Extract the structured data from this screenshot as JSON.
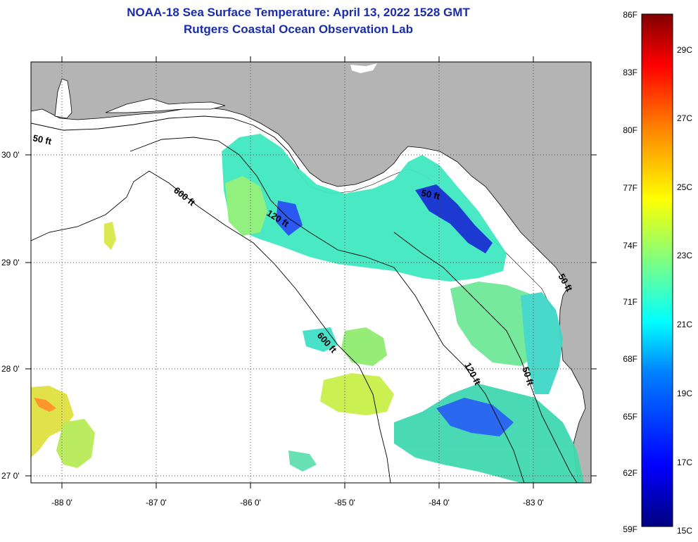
{
  "header": {
    "title": "NOAA-18 Sea Surface Temperature:  April 13, 2022 1528 GMT",
    "subtitle": "Rutgers Coastal Ocean Observation Lab"
  },
  "map": {
    "lat_labels": [
      "30 0'",
      "29 0'",
      "28 0'",
      "27 0'"
    ],
    "lon_labels": [
      "-88 0'",
      "-87 0'",
      "-86 0'",
      "-85 0'",
      "-84 0'",
      "-83 0'"
    ],
    "depth_labels": [
      "50 ft",
      "600 ft",
      "120 ft",
      "600 ft",
      "120 ft",
      "50 ft",
      "50 ft",
      "50 ft"
    ],
    "colors": {
      "land": "#b4b4b4",
      "cloud": "#ffffff",
      "coast": "#000000"
    }
  },
  "colorbar": {
    "f_labels": [
      "86F",
      "83F",
      "80F",
      "77F",
      "74F",
      "71F",
      "68F",
      "65F",
      "62F",
      "59F"
    ],
    "c_labels": [
      "29C",
      "27C",
      "25C",
      "23C",
      "21C",
      "19C",
      "17C",
      "15C"
    ],
    "colors": [
      "#00008f",
      "#0000ff",
      "#00bfff",
      "#00ffff",
      "#80ff80",
      "#ffff00",
      "#ff8000",
      "#ff0000",
      "#800000"
    ]
  }
}
